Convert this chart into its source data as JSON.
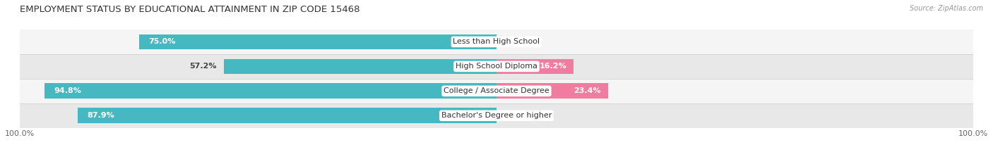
{
  "title": "EMPLOYMENT STATUS BY EDUCATIONAL ATTAINMENT IN ZIP CODE 15468",
  "source": "Source: ZipAtlas.com",
  "categories": [
    "Less than High School",
    "High School Diploma",
    "College / Associate Degree",
    "Bachelor's Degree or higher"
  ],
  "labor_force": [
    75.0,
    57.2,
    94.8,
    87.9
  ],
  "unemployed": [
    0.0,
    16.2,
    23.4,
    0.0
  ],
  "labor_force_color": "#45b8c2",
  "unemployed_color": "#f07ca0",
  "background_color": "#ffffff",
  "row_bg_even": "#f5f5f5",
  "row_bg_odd": "#e8e8e8",
  "x_min": -100,
  "x_max": 100,
  "title_fontsize": 9.5,
  "tick_fontsize": 8,
  "bar_label_fontsize": 8,
  "category_fontsize": 8,
  "legend_fontsize": 8
}
